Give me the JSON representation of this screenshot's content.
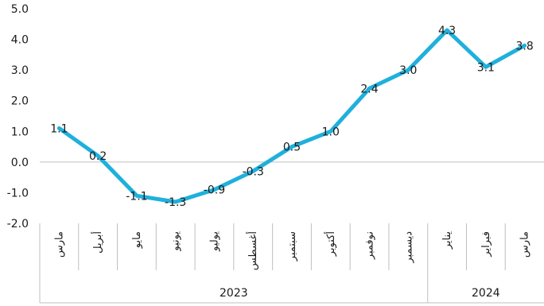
{
  "chart_data": {
    "type": "line",
    "title": "",
    "xlabel": "",
    "ylabel": "",
    "categories": [
      "مارس",
      "أبريل",
      "مايو",
      "يونيو",
      "يوليو",
      "أغسطس",
      "سبتمبر",
      "أكتوبر",
      "نوفمبر",
      "ديسمبر",
      "يناير",
      "فبراير",
      "مارس"
    ],
    "years": [
      {
        "label": "2023",
        "span": 10
      },
      {
        "label": "2024",
        "span": 3
      }
    ],
    "series": [
      {
        "values": [
          1.1,
          0.2,
          -1.1,
          -1.3,
          -0.9,
          -0.3,
          0.5,
          1.0,
          2.4,
          3.0,
          4.3,
          3.1,
          3.8
        ],
        "value_labels": [
          "1.1",
          "0.2",
          "-1.1",
          "-1.3",
          "-0.9",
          "-0.3",
          "0.5",
          "1.0",
          "2.4",
          "3.0",
          "4.3",
          "3.1",
          "3.8"
        ],
        "color": "#1fb0dc"
      }
    ],
    "yticks": [
      "5.0",
      "4.0",
      "3.0",
      "2.0",
      "1.0",
      "0.0",
      "-1.0",
      "-2.0"
    ],
    "ytick_values": [
      5,
      4,
      3,
      2,
      1,
      0,
      -1,
      -2
    ],
    "ylim": [
      -2,
      5
    ],
    "grid": false,
    "legend": "none",
    "axis_color": "#bfbfbf"
  }
}
